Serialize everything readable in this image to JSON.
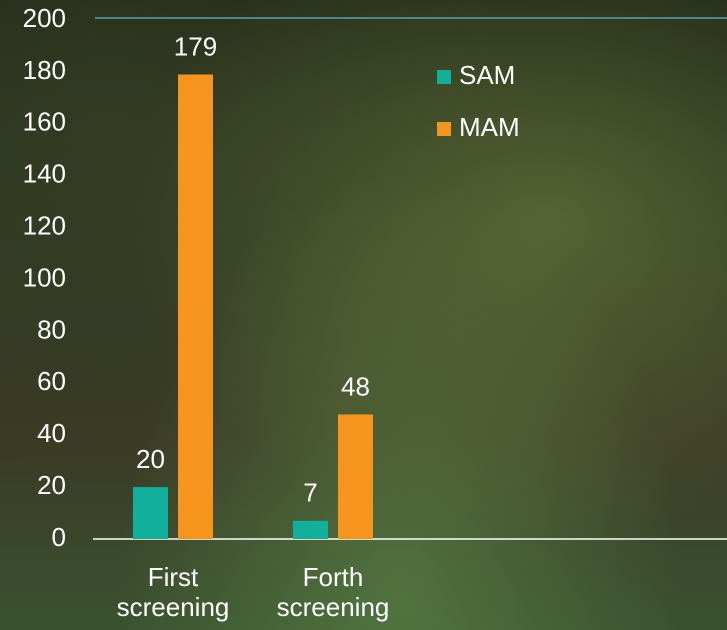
{
  "chart_data": {
    "type": "bar",
    "categories": [
      "First screening",
      "Forth screening"
    ],
    "series": [
      {
        "name": "SAM",
        "color": "#12b09b",
        "values": [
          20,
          7
        ]
      },
      {
        "name": "MAM",
        "color": "#f7941d",
        "values": [
          179,
          48
        ]
      }
    ],
    "ylim": [
      0,
      200
    ],
    "yticks": [
      0,
      20,
      40,
      60,
      80,
      100,
      120,
      140,
      160,
      180,
      200
    ],
    "grid": false,
    "legend": "top-right"
  }
}
